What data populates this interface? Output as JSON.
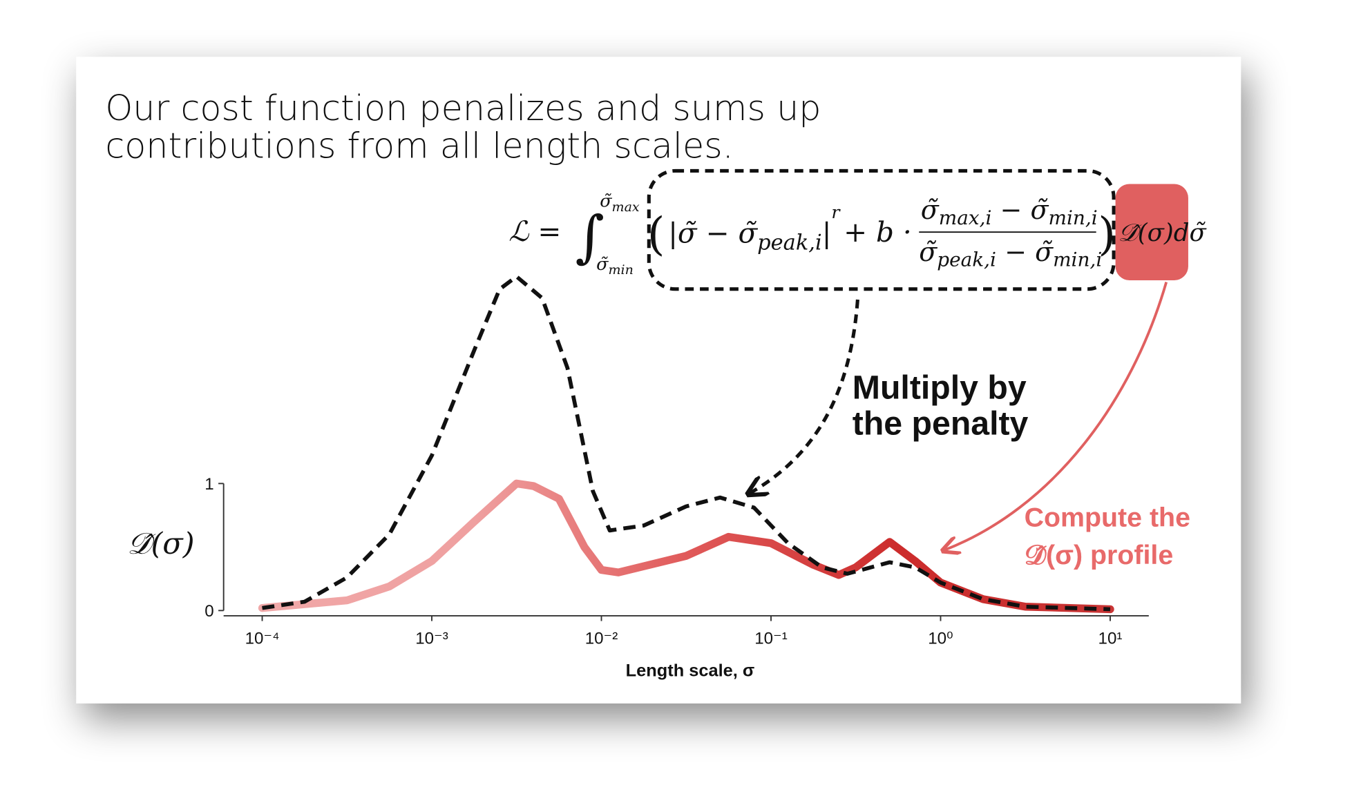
{
  "slide": {
    "title_lines": [
      "Our cost function penalizes and sums up",
      "contributions from all length scales."
    ],
    "formula": {
      "lhs": "ℒ =",
      "integral": "∫",
      "upper": "σ̃",
      "upper_sub": "max",
      "lower": "σ̃",
      "lower_sub": "min",
      "open": "(",
      "abs_body": "|σ̃ − σ̃",
      "abs_sub": "peak,i",
      "abs_close": "|",
      "exponent": "r",
      "plus_b": "+ b ·",
      "num_a": "σ̃",
      "num_a_sub": "max,i",
      "num_minus": " − σ̃",
      "num_b_sub": "min,i",
      "den_a": "σ̃",
      "den_a_sub": "peak,i",
      "den_minus": " − σ̃",
      "den_b_sub": "min,i",
      "close": ")",
      "tail": "𝒟̂(σ)dσ̃"
    },
    "annotations": {
      "penalty": [
        "Multiply by",
        "the penalty"
      ],
      "profile": [
        "Compute the",
        "𝒟̂(σ) profile"
      ]
    }
  },
  "chart_data": {
    "type": "line",
    "x_label": "Length scale, σ",
    "y_label": "𝒟̂(σ)",
    "log_x": true,
    "xlim": [
      0.0001,
      10
    ],
    "xticks": [
      {
        "value": 0.0001,
        "label": "10⁻⁴"
      },
      {
        "value": 0.001,
        "label": "10⁻³"
      },
      {
        "value": 0.01,
        "label": "10⁻²"
      },
      {
        "value": 0.1,
        "label": "10⁻¹"
      },
      {
        "value": 1,
        "label": "10⁰"
      },
      {
        "value": 10,
        "label": "10¹"
      }
    ],
    "ylim": [
      0,
      2.7
    ],
    "yticks": [
      0,
      1
    ],
    "series": [
      {
        "color": "#111111",
        "dashed": true,
        "x": [
          0.0001,
          0.000178,
          0.000316,
          0.000562,
          0.001,
          0.00178,
          0.00251,
          0.00316,
          0.00447,
          0.00631,
          0.00891,
          0.0112,
          0.0178,
          0.0316,
          0.0501,
          0.0794,
          0.126,
          0.2,
          0.282,
          0.501,
          0.708,
          1,
          1.78,
          3.16,
          10
        ],
        "values": [
          0.02,
          0.07,
          0.26,
          0.6,
          1.22,
          2.05,
          2.53,
          2.63,
          2.46,
          1.91,
          0.94,
          0.63,
          0.67,
          0.82,
          0.89,
          0.81,
          0.53,
          0.34,
          0.29,
          0.38,
          0.34,
          0.22,
          0.09,
          0.03,
          0.01
        ]
      },
      {
        "colors": [
          "#f0a8a8",
          "#efa0a0",
          "#e05a5a",
          "#cc2c2c",
          "#c83434"
        ],
        "dashed": false,
        "x": [
          0.0001,
          0.000316,
          0.000562,
          0.001,
          0.00178,
          0.00316,
          0.00398,
          0.00562,
          0.00794,
          0.01,
          0.0126,
          0.0316,
          0.0562,
          0.1,
          0.178,
          0.251,
          0.316,
          0.501,
          0.708,
          1,
          1.78,
          3.16,
          10
        ],
        "values": [
          0.02,
          0.08,
          0.19,
          0.39,
          0.7,
          1.0,
          0.98,
          0.88,
          0.5,
          0.32,
          0.3,
          0.43,
          0.58,
          0.53,
          0.36,
          0.28,
          0.34,
          0.54,
          0.39,
          0.22,
          0.09,
          0.03,
          0.01
        ]
      }
    ]
  }
}
